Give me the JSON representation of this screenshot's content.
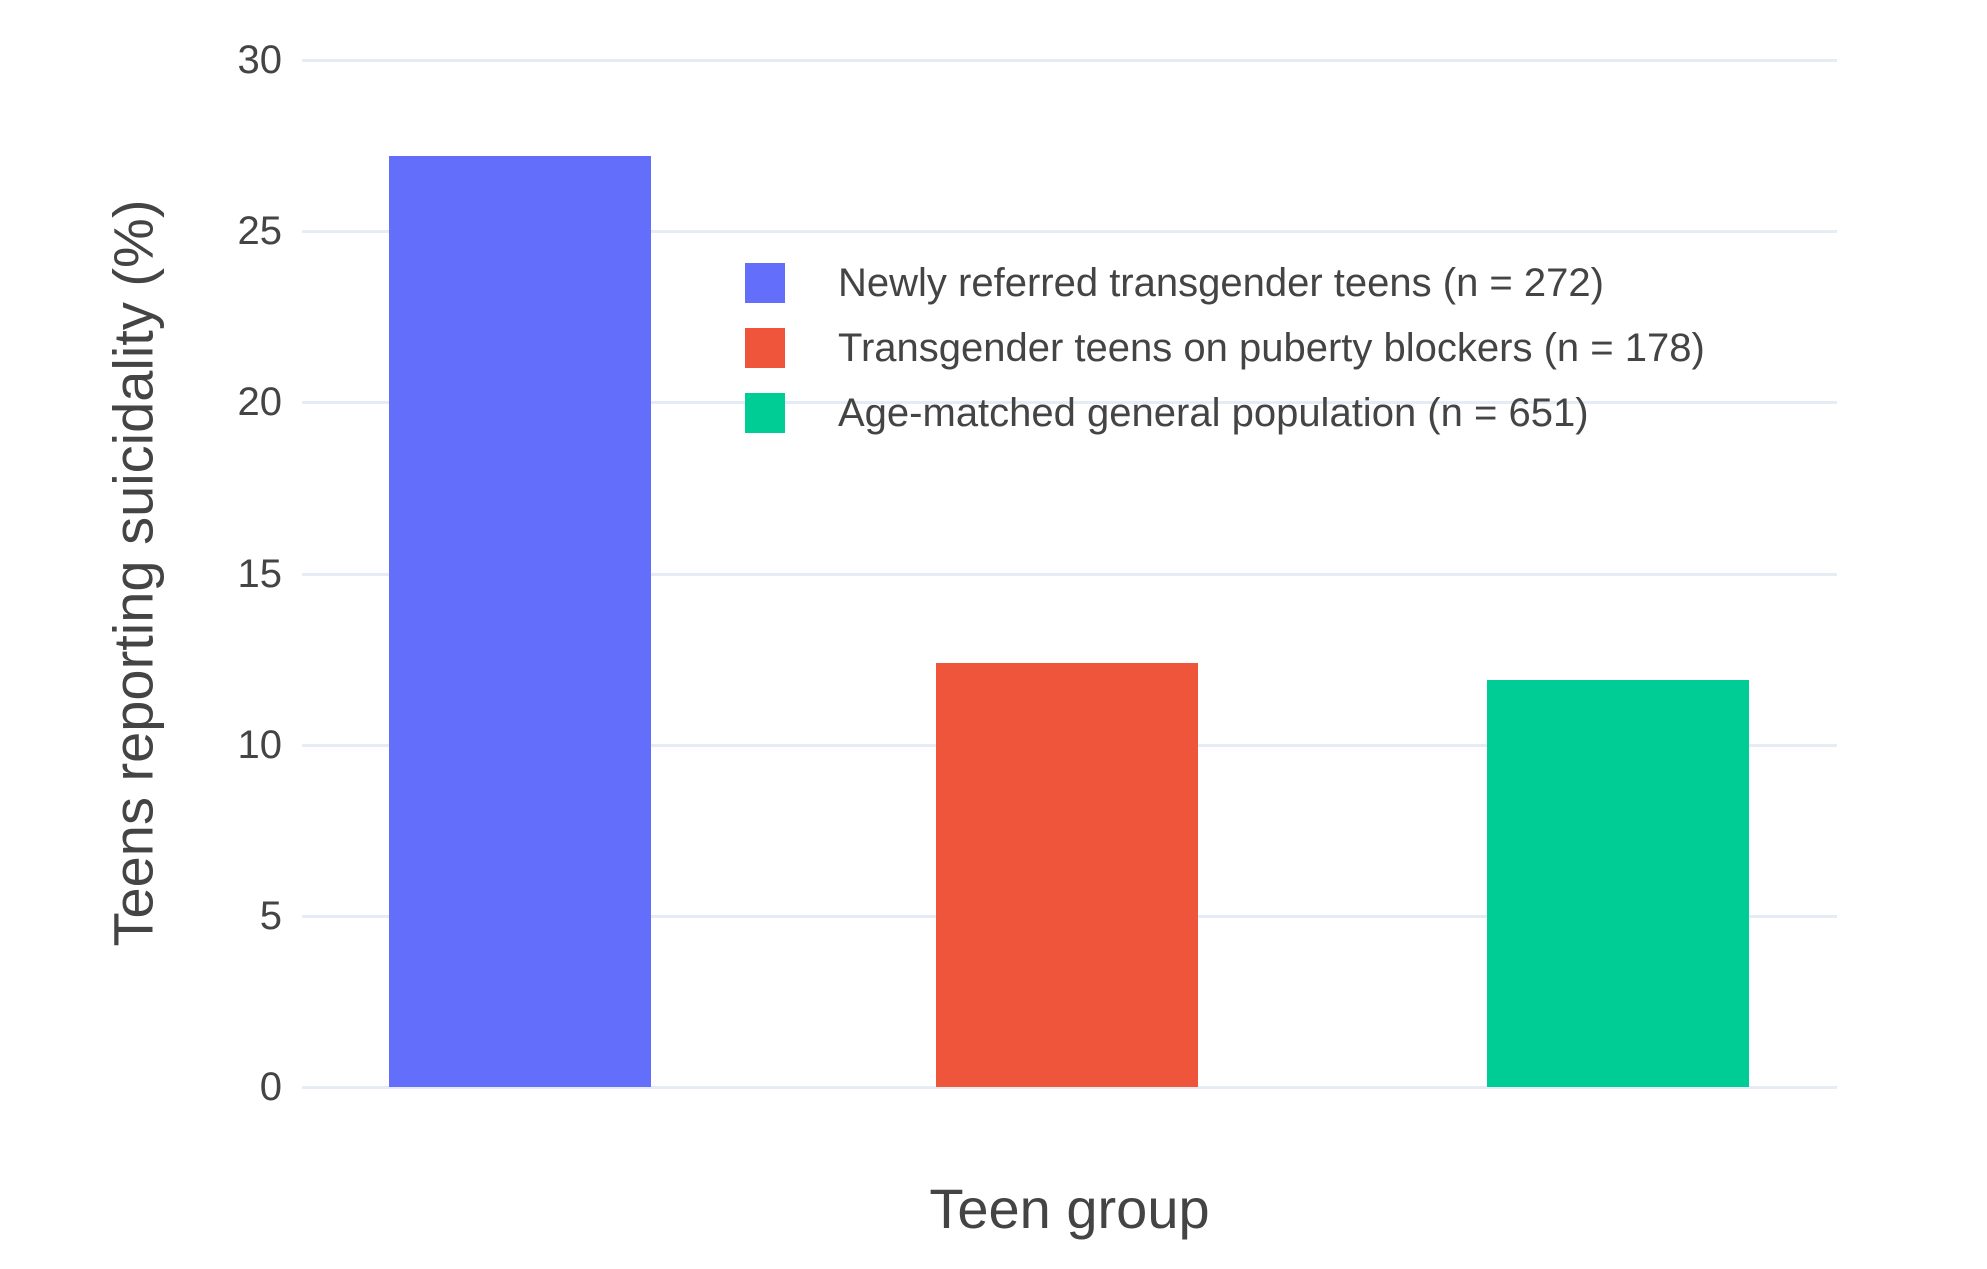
{
  "chart_data": {
    "type": "bar",
    "title": "",
    "xlabel": "Teen group",
    "ylabel": "Teens reporting suicidality (%)",
    "ylim": [
      0,
      30
    ],
    "yticks": [
      0,
      5,
      10,
      15,
      20,
      25,
      30
    ],
    "grid": true,
    "grid_color": "#E5ECF6",
    "text_color": "#444444",
    "background_color": "#ffffff",
    "legend_position": "inside-top-center",
    "categories": [
      "Newly referred transgender teens (n = 272)",
      "Transgender teens on puberty blockers (n = 178)",
      "Age-matched general population (n = 651)"
    ],
    "values": [
      27.2,
      12.4,
      11.9
    ],
    "series": [
      {
        "name": "Newly referred transgender teens (n = 272)",
        "value": 27.2,
        "color": "#636EFA"
      },
      {
        "name": "Transgender teens on puberty blockers (n = 178)",
        "value": 12.4,
        "color": "#EF553B"
      },
      {
        "name": "Age-matched general population (n = 651)",
        "value": 11.9,
        "color": "#00CC96"
      }
    ],
    "legend": [
      {
        "label": "Newly referred transgender teens (n = 272)",
        "color": "#636EFA"
      },
      {
        "label": "Transgender teens on puberty blockers (n = 178)",
        "color": "#EF553B"
      },
      {
        "label": "Age-matched general population (n = 651)",
        "color": "#00CC96"
      }
    ]
  }
}
